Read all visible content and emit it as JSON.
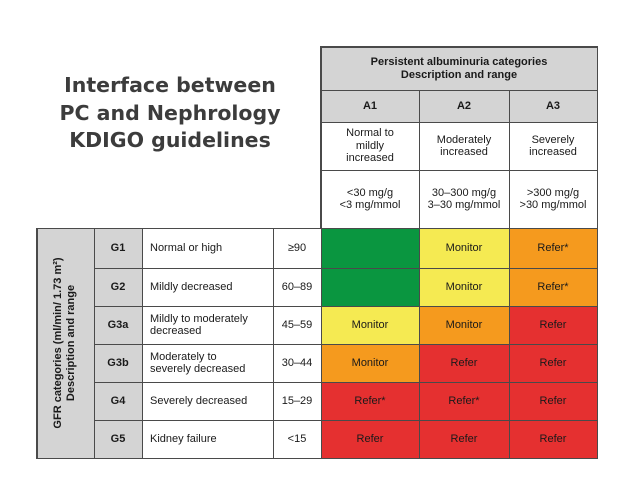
{
  "slide": {
    "title": "Interface between\nPC and Nephrology\nKDIGO guidelines"
  },
  "table": {
    "header": {
      "title": "Persistent albuminuria categories",
      "subtitle": "Description and range"
    },
    "side_label": {
      "line1": "GFR categories (ml/min/ 1.73 m²)",
      "line2": "Description and range"
    },
    "albuminuria": [
      {
        "code": "A1",
        "desc": "Normal to\nmildly\nincreased",
        "range": "<30 mg/g\n<3 mg/mmol"
      },
      {
        "code": "A2",
        "desc": "Moderately\nincreased",
        "range": "30–300 mg/g\n3–30 mg/mmol"
      },
      {
        "code": "A3",
        "desc": "Severely\nincreased",
        "range": ">300 mg/g\n>30 mg/mmol"
      }
    ],
    "rows": [
      {
        "code": "G1",
        "desc": "Normal or high",
        "range": "≥90",
        "cells": [
          "",
          "Monitor",
          "Refer*"
        ]
      },
      {
        "code": "G2",
        "desc": "Mildly decreased",
        "range": "60–89",
        "cells": [
          "",
          "Monitor",
          "Refer*"
        ]
      },
      {
        "code": "G3a",
        "desc": "Mildly to moderately\ndecreased",
        "range": "45–59",
        "cells": [
          "Monitor",
          "Monitor",
          "Refer"
        ]
      },
      {
        "code": "G3b",
        "desc": "Moderately to\nseverely decreased",
        "range": "30–44",
        "cells": [
          "Monitor",
          "Refer",
          "Refer"
        ]
      },
      {
        "code": "G4",
        "desc": "Severely decreased",
        "range": "15–29",
        "cells": [
          "Refer*",
          "Refer*",
          "Refer"
        ]
      },
      {
        "code": "G5",
        "desc": "Kidney failure",
        "range": "<15",
        "cells": [
          "Refer",
          "Refer",
          "Refer"
        ]
      }
    ],
    "risk_levels": [
      [
        "green",
        "yellow",
        "orange"
      ],
      [
        "green",
        "yellow",
        "orange"
      ],
      [
        "yellow",
        "orange",
        "red"
      ],
      [
        "orange",
        "red",
        "red"
      ],
      [
        "red",
        "red",
        "red"
      ],
      [
        "red",
        "red",
        "red"
      ]
    ],
    "colors": {
      "green": "#0a9640",
      "yellow": "#f5ea52",
      "orange": "#f59a1e",
      "red": "#e53030",
      "header_gray": "#d4d4d4",
      "border": "#4a4a4a"
    }
  }
}
